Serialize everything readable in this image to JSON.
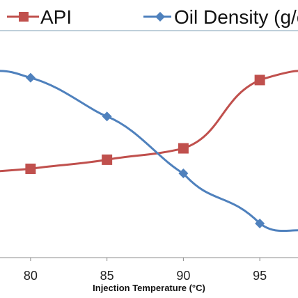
{
  "chart_data": {
    "type": "line",
    "x": [
      80,
      85,
      90,
      95
    ],
    "xlabel": "Injection Temperature (°C)",
    "xlim": [
      78,
      97.5
    ],
    "ylim": [
      0,
      1
    ],
    "grid": false,
    "legend_placement": "top",
    "series": [
      {
        "name": "API",
        "color": "#c0504d",
        "marker": "square",
        "values": [
          0.39,
          0.43,
          0.48,
          0.78
        ]
      },
      {
        "name": "Oil Density (g/c",
        "color": "#4f81bd",
        "marker": "diamond",
        "values": [
          0.79,
          0.62,
          0.37,
          0.15
        ]
      }
    ]
  }
}
